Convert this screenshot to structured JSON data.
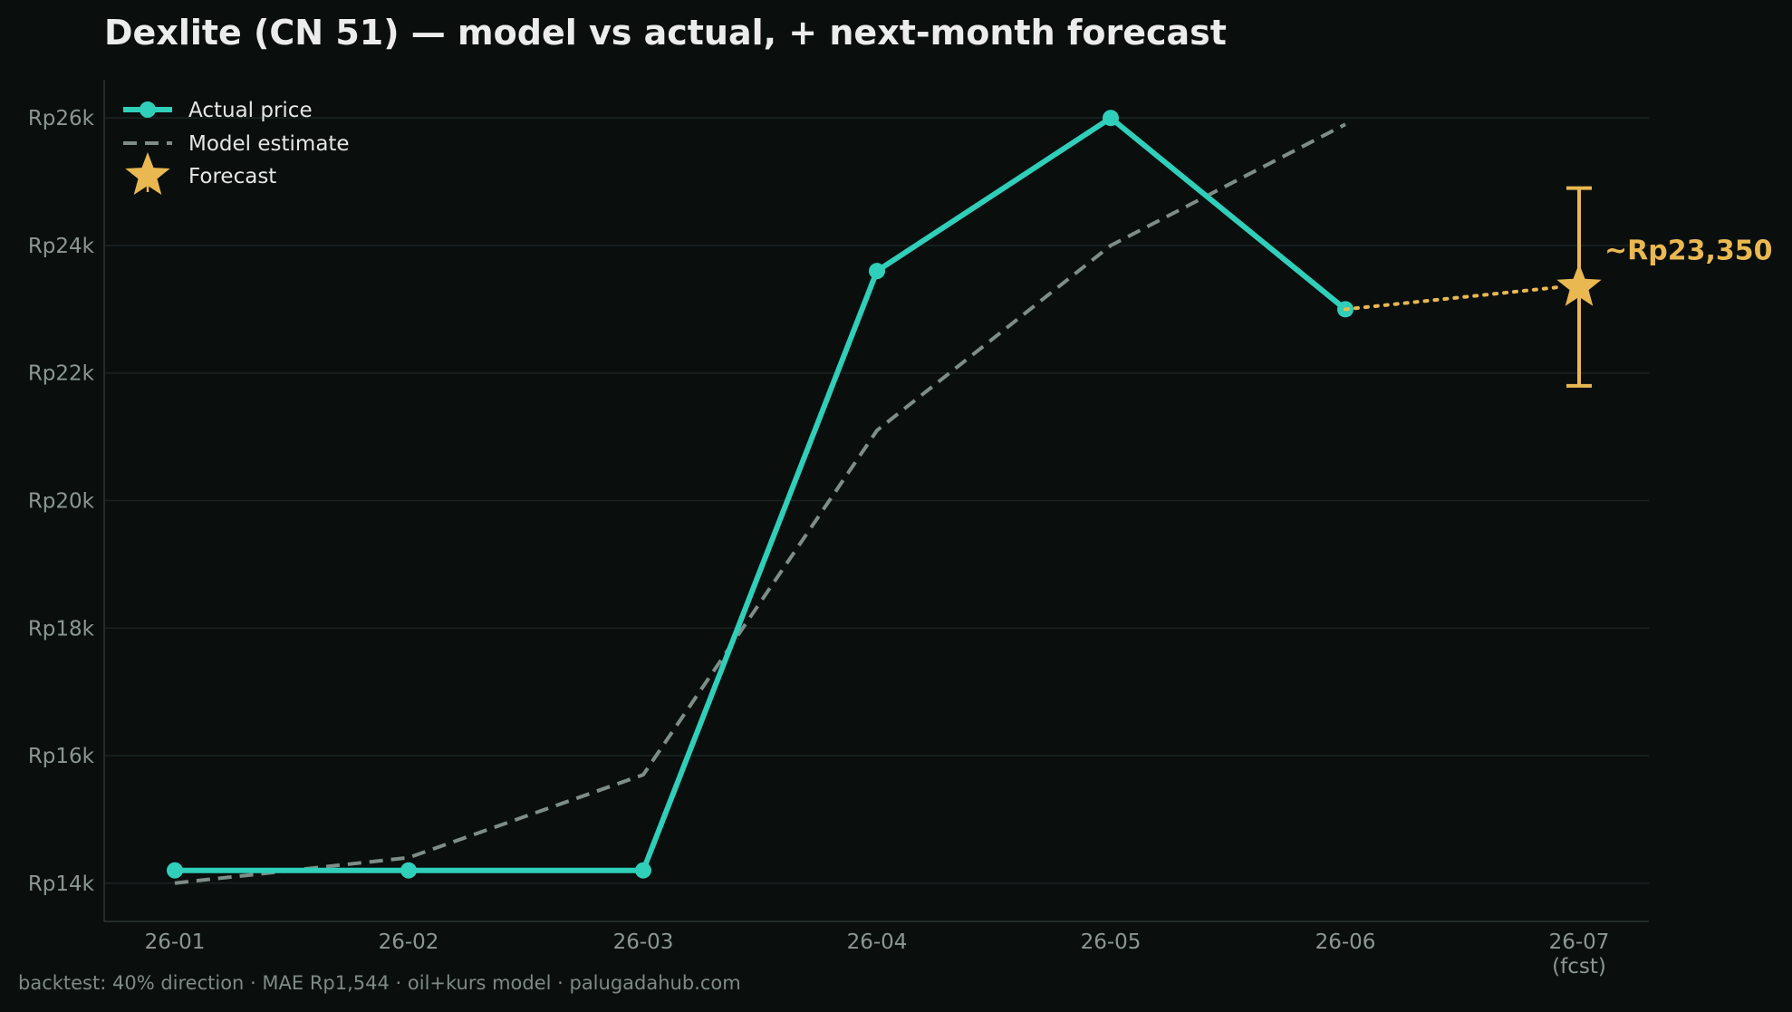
{
  "chart_data": {
    "type": "line",
    "title": "Dexlite (CN 51) — model vs actual, + next-month forecast",
    "xlabel": "",
    "ylabel": "",
    "categories": [
      "26-01",
      "26-02",
      "26-03",
      "26-04",
      "26-05",
      "26-06",
      "26-07"
    ],
    "category_sublabels": [
      "",
      "",
      "",
      "",
      "",
      "",
      "(fcst)"
    ],
    "y_ticks": [
      14000,
      16000,
      18000,
      20000,
      22000,
      24000,
      26000
    ],
    "y_tick_labels": [
      "Rp14k",
      "Rp16k",
      "Rp18k",
      "Rp20k",
      "Rp22k",
      "Rp24k",
      "Rp26k"
    ],
    "ylim": [
      13400,
      26600
    ],
    "grid": "horizontal",
    "legend_position": "top-left",
    "series": [
      {
        "name": "Actual price",
        "style": "solid-markers",
        "color": "#2fcfb9",
        "values": [
          14200,
          14200,
          14200,
          23600,
          26000,
          23000,
          null
        ]
      },
      {
        "name": "Model estimate",
        "style": "dashed",
        "color": "#7e8d88",
        "values": [
          14000,
          14400,
          15700,
          21100,
          24000,
          25900,
          null
        ]
      },
      {
        "name": "Forecast",
        "style": "star",
        "color": "#eab850",
        "connect_from": "26-06",
        "point": {
          "x": "26-07",
          "value": 23350,
          "low": 21800,
          "high": 24900
        }
      }
    ],
    "annotations": [
      {
        "text": "~Rp23,350",
        "at": "26-07",
        "color": "#eab850"
      }
    ]
  },
  "footer": "backtest: 40% direction · MAE Rp1,544 · oil+kurs model · palugadahub.com",
  "colors": {
    "background": "#0a0f0e",
    "grid": "#1a2321",
    "axis": "#2c3532"
  }
}
